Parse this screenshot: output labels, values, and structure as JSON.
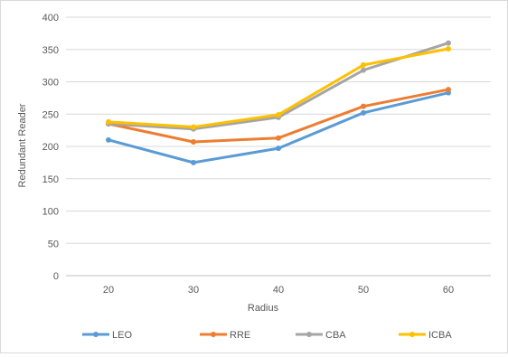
{
  "chart_data": {
    "type": "line",
    "title": "",
    "xlabel": "Radius",
    "ylabel": "Redundant Reader",
    "categories": [
      "20",
      "30",
      "40",
      "50",
      "60"
    ],
    "ylim": [
      0,
      400
    ],
    "yticks": [
      0,
      50,
      100,
      150,
      200,
      250,
      300,
      350,
      400
    ],
    "grid": true,
    "legend_position": "bottom",
    "series": [
      {
        "name": "LEO",
        "color": "#5b9bd5",
        "values": [
          210,
          175,
          197,
          252,
          283
        ]
      },
      {
        "name": "RRE",
        "color": "#ed7d31",
        "values": [
          235,
          207,
          213,
          262,
          288
        ]
      },
      {
        "name": "CBA",
        "color": "#a5a5a5",
        "values": [
          235,
          227,
          245,
          318,
          360
        ]
      },
      {
        "name": "ICBA",
        "color": "#ffc000",
        "values": [
          238,
          230,
          249,
          326,
          351
        ]
      }
    ]
  }
}
